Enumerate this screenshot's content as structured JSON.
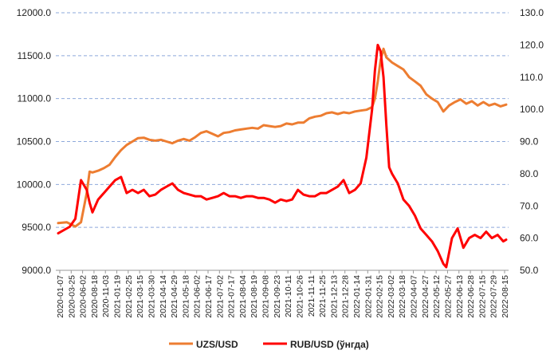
{
  "chart_data": {
    "type": "line",
    "grid": true,
    "legend_position": "bottom",
    "y_left": {
      "min": 9000,
      "max": 12000,
      "ticks": [
        9000,
        9500,
        10000,
        10500,
        11000,
        11500,
        12000
      ],
      "tick_labels": [
        "9000.0",
        "9500.0",
        "10000.0",
        "10500.0",
        "11000.0",
        "11500.0",
        "12000.0"
      ]
    },
    "y_right": {
      "min": 50,
      "max": 130,
      "ticks": [
        50,
        60,
        70,
        80,
        90,
        100,
        110,
        120,
        130
      ],
      "tick_labels": [
        "50.0",
        "60.0",
        "70.0",
        "80.0",
        "90.0",
        "100.0",
        "110.0",
        "120.0",
        "130.0"
      ]
    },
    "x_range": [
      "2020-01-07",
      "2022-08-31"
    ],
    "x_tick_labels": [
      "2020-01-07",
      "2020-03-25",
      "2020-06-02",
      "2020-08-18",
      "2020-11-03",
      "2021-01-19",
      "2021-02-25",
      "2021-03-15",
      "2021-03-30",
      "2021-04-14",
      "2021-04-29",
      "2021-05-18",
      "2021-06-02",
      "2021-06-17",
      "2021-07-02",
      "2021-07-17",
      "2021-08-04",
      "2021-08-19",
      "2021-09-08",
      "2021-09-23",
      "2021-10-11",
      "2021-10-26",
      "2021-11-11",
      "2021-11-25",
      "2021-12-13",
      "2021-12-28",
      "2022-01-14",
      "2022-01-31",
      "2022-02-15",
      "2022-03-02",
      "2022-03-18",
      "2022-04-07",
      "2022-04-27",
      "2022-05-12",
      "2022-05-27",
      "2022-06-13",
      "2022-06-28",
      "2022-07-15",
      "2022-07-29",
      "2022-08-15"
    ],
    "series": [
      {
        "name": "UZS/USD",
        "axis": "left",
        "color": "#ED7D31",
        "points": [
          [
            0,
            9550
          ],
          [
            3,
            9560
          ],
          [
            6,
            9510
          ],
          [
            8,
            9560
          ],
          [
            10,
            9900
          ],
          [
            11,
            10150
          ],
          [
            12,
            10140
          ],
          [
            14,
            10160
          ],
          [
            16,
            10190
          ],
          [
            18,
            10230
          ],
          [
            20,
            10320
          ],
          [
            22,
            10400
          ],
          [
            24,
            10460
          ],
          [
            26,
            10500
          ],
          [
            28,
            10540
          ],
          [
            30,
            10545
          ],
          [
            32,
            10520
          ],
          [
            34,
            10510
          ],
          [
            36,
            10520
          ],
          [
            38,
            10500
          ],
          [
            40,
            10480
          ],
          [
            42,
            10510
          ],
          [
            44,
            10530
          ],
          [
            46,
            10510
          ],
          [
            48,
            10550
          ],
          [
            50,
            10600
          ],
          [
            52,
            10620
          ],
          [
            54,
            10590
          ],
          [
            56,
            10560
          ],
          [
            58,
            10600
          ],
          [
            60,
            10610
          ],
          [
            62,
            10630
          ],
          [
            64,
            10640
          ],
          [
            66,
            10650
          ],
          [
            68,
            10660
          ],
          [
            70,
            10650
          ],
          [
            72,
            10690
          ],
          [
            74,
            10680
          ],
          [
            76,
            10670
          ],
          [
            78,
            10680
          ],
          [
            80,
            10710
          ],
          [
            82,
            10700
          ],
          [
            84,
            10720
          ],
          [
            86,
            10720
          ],
          [
            88,
            10770
          ],
          [
            90,
            10790
          ],
          [
            92,
            10800
          ],
          [
            94,
            10830
          ],
          [
            96,
            10840
          ],
          [
            98,
            10820
          ],
          [
            100,
            10840
          ],
          [
            102,
            10830
          ],
          [
            104,
            10850
          ],
          [
            106,
            10860
          ],
          [
            108,
            10870
          ],
          [
            110,
            10900
          ],
          [
            111,
            11000
          ],
          [
            112,
            11200
          ],
          [
            113,
            11450
          ],
          [
            114,
            11580
          ],
          [
            115,
            11480
          ],
          [
            117,
            11420
          ],
          [
            119,
            11380
          ],
          [
            121,
            11340
          ],
          [
            123,
            11250
          ],
          [
            125,
            11200
          ],
          [
            127,
            11150
          ],
          [
            129,
            11050
          ],
          [
            131,
            11000
          ],
          [
            133,
            10960
          ],
          [
            135,
            10850
          ],
          [
            137,
            10920
          ],
          [
            139,
            10960
          ],
          [
            141,
            10990
          ],
          [
            143,
            10940
          ],
          [
            145,
            10970
          ],
          [
            147,
            10920
          ],
          [
            149,
            10960
          ],
          [
            151,
            10920
          ],
          [
            153,
            10940
          ],
          [
            155,
            10910
          ],
          [
            157,
            10930
          ]
        ]
      },
      {
        "name": "RUB/USD (ўнгда)",
        "axis": "right",
        "color": "#FF0000",
        "points": [
          [
            0,
            61.5
          ],
          [
            2,
            62.5
          ],
          [
            4,
            63.5
          ],
          [
            6,
            66
          ],
          [
            8,
            78
          ],
          [
            10,
            75
          ],
          [
            11,
            71
          ],
          [
            12,
            68
          ],
          [
            14,
            72
          ],
          [
            16,
            74
          ],
          [
            18,
            76
          ],
          [
            20,
            78
          ],
          [
            22,
            79
          ],
          [
            24,
            74
          ],
          [
            26,
            75
          ],
          [
            28,
            74
          ],
          [
            30,
            75
          ],
          [
            32,
            73
          ],
          [
            34,
            73.5
          ],
          [
            36,
            75
          ],
          [
            38,
            76
          ],
          [
            40,
            77
          ],
          [
            42,
            75
          ],
          [
            44,
            74
          ],
          [
            46,
            73.5
          ],
          [
            48,
            73
          ],
          [
            50,
            73
          ],
          [
            52,
            72
          ],
          [
            54,
            72.5
          ],
          [
            56,
            73
          ],
          [
            58,
            74
          ],
          [
            60,
            73
          ],
          [
            62,
            73
          ],
          [
            64,
            72.5
          ],
          [
            66,
            73
          ],
          [
            68,
            73
          ],
          [
            70,
            72.5
          ],
          [
            72,
            72.5
          ],
          [
            74,
            72
          ],
          [
            76,
            71
          ],
          [
            78,
            72
          ],
          [
            80,
            71.5
          ],
          [
            82,
            72
          ],
          [
            84,
            75
          ],
          [
            86,
            73.5
          ],
          [
            88,
            73
          ],
          [
            90,
            73
          ],
          [
            92,
            74
          ],
          [
            94,
            74
          ],
          [
            96,
            75
          ],
          [
            98,
            76
          ],
          [
            100,
            78
          ],
          [
            102,
            74
          ],
          [
            104,
            75
          ],
          [
            106,
            77
          ],
          [
            108,
            85
          ],
          [
            110,
            100
          ],
          [
            111,
            112
          ],
          [
            112,
            120
          ],
          [
            113,
            118
          ],
          [
            114,
            110
          ],
          [
            115,
            95
          ],
          [
            116,
            82
          ],
          [
            117,
            80
          ],
          [
            119,
            77
          ],
          [
            121,
            72
          ],
          [
            123,
            70
          ],
          [
            125,
            67
          ],
          [
            127,
            63
          ],
          [
            129,
            61
          ],
          [
            131,
            59
          ],
          [
            133,
            56
          ],
          [
            135,
            52
          ],
          [
            136,
            51
          ],
          [
            138,
            60
          ],
          [
            140,
            63
          ],
          [
            142,
            57
          ],
          [
            144,
            60
          ],
          [
            146,
            61
          ],
          [
            148,
            60
          ],
          [
            150,
            62
          ],
          [
            152,
            60
          ],
          [
            154,
            61
          ],
          [
            156,
            59
          ],
          [
            157,
            59.5
          ]
        ]
      }
    ]
  }
}
